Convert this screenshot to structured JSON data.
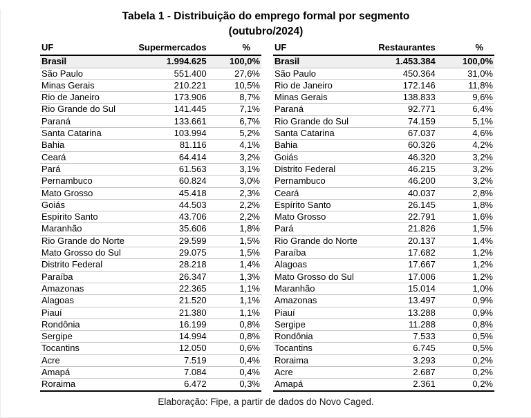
{
  "page": {
    "title_line1": "Tabela 1 - Distribuição do emprego formal por segmento",
    "title_line2": "(outubro/2024)",
    "footer": "Elaboração: Fipe, a partir de dados do Novo Caged."
  },
  "colors": {
    "total_row_bg": "#efefef",
    "thick_border": "#000000",
    "row_divider": "#c3c3c3"
  },
  "tables": [
    {
      "name": "Supermercados",
      "headers": {
        "uf": "UF",
        "value": "Supermercados",
        "pct": "%"
      },
      "total": {
        "uf": "Brasil",
        "value": "1.994.625",
        "pct": "100,0%"
      },
      "rows": [
        {
          "uf": "São Paulo",
          "value": "551.400",
          "pct": "27,6%"
        },
        {
          "uf": "Minas Gerais",
          "value": "210.221",
          "pct": "10,5%"
        },
        {
          "uf": "Rio de Janeiro",
          "value": "173.906",
          "pct": "8,7%"
        },
        {
          "uf": "Rio Grande do Sul",
          "value": "141.445",
          "pct": "7,1%"
        },
        {
          "uf": "Paraná",
          "value": "133.661",
          "pct": "6,7%"
        },
        {
          "uf": "Santa Catarina",
          "value": "103.994",
          "pct": "5,2%"
        },
        {
          "uf": "Bahia",
          "value": "81.116",
          "pct": "4,1%"
        },
        {
          "uf": "Ceará",
          "value": "64.414",
          "pct": "3,2%"
        },
        {
          "uf": "Pará",
          "value": "61.563",
          "pct": "3,1%"
        },
        {
          "uf": "Pernambuco",
          "value": "60.824",
          "pct": "3,0%"
        },
        {
          "uf": "Mato Grosso",
          "value": "45.418",
          "pct": "2,3%"
        },
        {
          "uf": "Goiás",
          "value": "44.503",
          "pct": "2,2%"
        },
        {
          "uf": "Espírito Santo",
          "value": "43.706",
          "pct": "2,2%"
        },
        {
          "uf": "Maranhão",
          "value": "35.606",
          "pct": "1,8%"
        },
        {
          "uf": "Rio Grande do Norte",
          "value": "29.599",
          "pct": "1,5%"
        },
        {
          "uf": "Mato Grosso do Sul",
          "value": "29.075",
          "pct": "1,5%"
        },
        {
          "uf": "Distrito Federal",
          "value": "28.218",
          "pct": "1,4%"
        },
        {
          "uf": "Paraíba",
          "value": "26.347",
          "pct": "1,3%"
        },
        {
          "uf": "Amazonas",
          "value": "22.365",
          "pct": "1,1%"
        },
        {
          "uf": "Alagoas",
          "value": "21.520",
          "pct": "1,1%"
        },
        {
          "uf": "Piauí",
          "value": "21.380",
          "pct": "1,1%"
        },
        {
          "uf": "Rondônia",
          "value": "16.199",
          "pct": "0,8%"
        },
        {
          "uf": "Sergipe",
          "value": "14.994",
          "pct": "0,8%"
        },
        {
          "uf": "Tocantins",
          "value": "12.050",
          "pct": "0,6%"
        },
        {
          "uf": "Acre",
          "value": "7.519",
          "pct": "0,4%"
        },
        {
          "uf": "Amapá",
          "value": "7.084",
          "pct": "0,4%"
        },
        {
          "uf": "Roraima",
          "value": "6.472",
          "pct": "0,3%"
        }
      ]
    },
    {
      "name": "Restaurantes",
      "headers": {
        "uf": "UF",
        "value": "Restaurantes",
        "pct": "%"
      },
      "total": {
        "uf": "Brasil",
        "value": "1.453.384",
        "pct": "100,0%"
      },
      "rows": [
        {
          "uf": "São Paulo",
          "value": "450.364",
          "pct": "31,0%"
        },
        {
          "uf": "Rio de Janeiro",
          "value": "172.146",
          "pct": "11,8%"
        },
        {
          "uf": "Minas Gerais",
          "value": "138.833",
          "pct": "9,6%"
        },
        {
          "uf": "Paraná",
          "value": "92.771",
          "pct": "6,4%"
        },
        {
          "uf": "Rio Grande do Sul",
          "value": "74.159",
          "pct": "5,1%"
        },
        {
          "uf": "Santa Catarina",
          "value": "67.037",
          "pct": "4,6%"
        },
        {
          "uf": "Bahia",
          "value": "60.326",
          "pct": "4,2%"
        },
        {
          "uf": "Goiás",
          "value": "46.320",
          "pct": "3,2%"
        },
        {
          "uf": "Distrito Federal",
          "value": "46.215",
          "pct": "3,2%"
        },
        {
          "uf": "Pernambuco",
          "value": "46.200",
          "pct": "3,2%"
        },
        {
          "uf": "Ceará",
          "value": "40.037",
          "pct": "2,8%"
        },
        {
          "uf": "Espírito Santo",
          "value": "26.145",
          "pct": "1,8%"
        },
        {
          "uf": "Mato Grosso",
          "value": "22.791",
          "pct": "1,6%"
        },
        {
          "uf": "Pará",
          "value": "21.826",
          "pct": "1,5%"
        },
        {
          "uf": "Rio Grande do Norte",
          "value": "20.137",
          "pct": "1,4%"
        },
        {
          "uf": "Paraíba",
          "value": "17.682",
          "pct": "1,2%"
        },
        {
          "uf": "Alagoas",
          "value": "17.667",
          "pct": "1,2%"
        },
        {
          "uf": "Mato Grosso do Sul",
          "value": "17.006",
          "pct": "1,2%"
        },
        {
          "uf": "Maranhão",
          "value": "15.014",
          "pct": "1,0%"
        },
        {
          "uf": "Amazonas",
          "value": "13.497",
          "pct": "0,9%"
        },
        {
          "uf": "Piauí",
          "value": "13.288",
          "pct": "0,9%"
        },
        {
          "uf": "Sergipe",
          "value": "11.288",
          "pct": "0,8%"
        },
        {
          "uf": "Rondônia",
          "value": "7.533",
          "pct": "0,5%"
        },
        {
          "uf": "Tocantins",
          "value": "6.745",
          "pct": "0,5%"
        },
        {
          "uf": "Roraima",
          "value": "3.293",
          "pct": "0,2%"
        },
        {
          "uf": "Acre",
          "value": "2.687",
          "pct": "0,2%"
        },
        {
          "uf": "Amapá",
          "value": "2.361",
          "pct": "0,2%"
        }
      ]
    }
  ]
}
